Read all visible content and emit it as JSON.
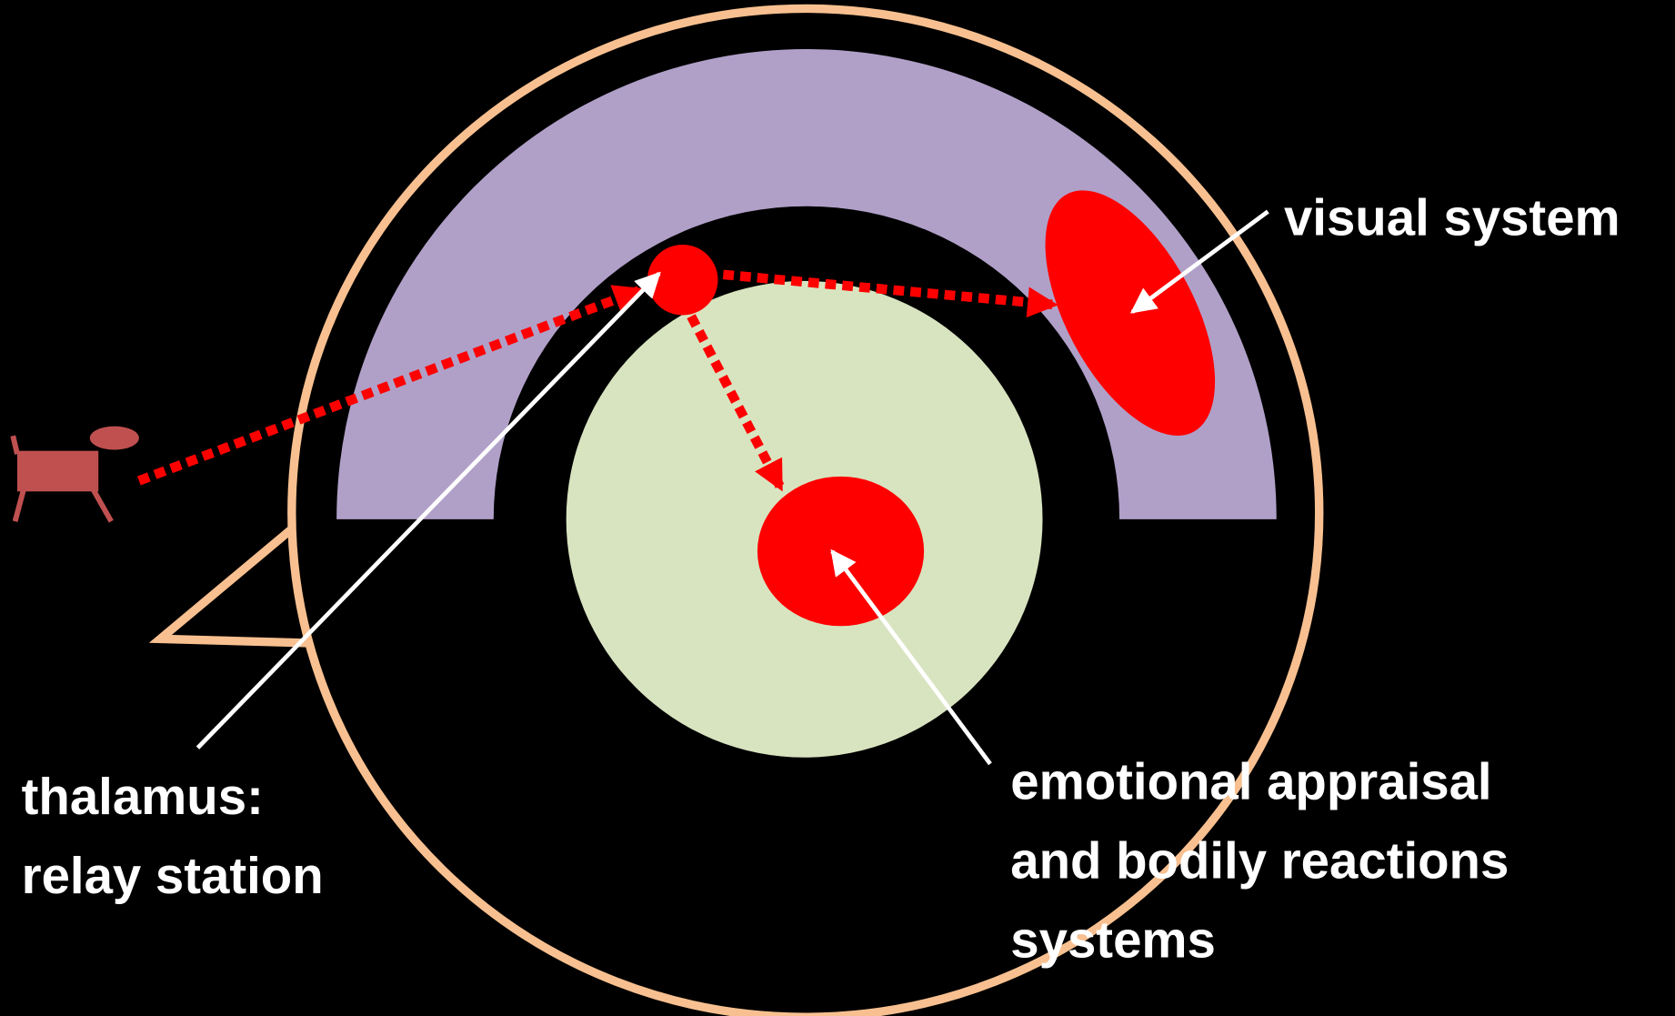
{
  "labels": {
    "visual_system": "visual system",
    "thalamus": [
      "thalamus:",
      "relay station"
    ],
    "emotional": [
      "emotional appraisal",
      "and bodily reactions",
      "systems"
    ]
  }
}
